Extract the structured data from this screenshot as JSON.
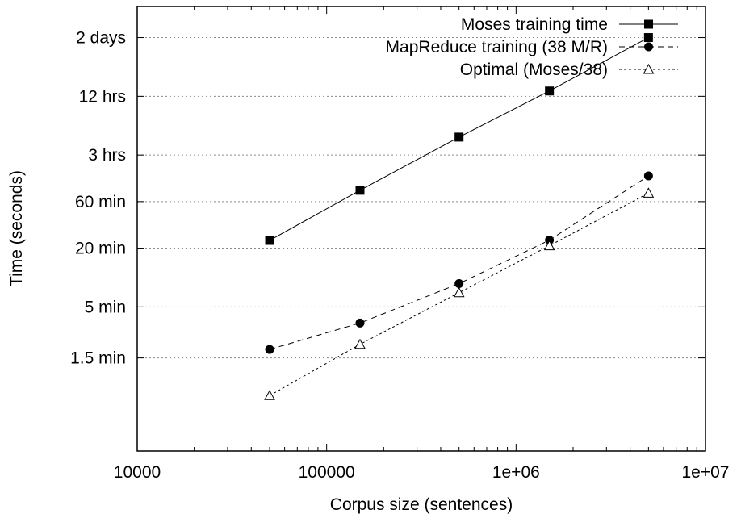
{
  "chart_data": {
    "type": "line",
    "xlabel": "Corpus size (sentences)",
    "ylabel": "Time (seconds)",
    "xscale": "log",
    "yscale": "log",
    "xlim": [
      10000,
      10000000
    ],
    "ylim": [
      10,
      360000
    ],
    "xticks": [
      {
        "value": 10000,
        "label": "10000"
      },
      {
        "value": 100000,
        "label": "100000"
      },
      {
        "value": 1000000,
        "label": "1e+06"
      },
      {
        "value": 10000000,
        "label": "1e+07"
      }
    ],
    "yticks": [
      {
        "value": 90,
        "label": "1.5 min"
      },
      {
        "value": 300,
        "label": "5 min"
      },
      {
        "value": 1200,
        "label": "20 min"
      },
      {
        "value": 3600,
        "label": "60 min"
      },
      {
        "value": 10800,
        "label": "3 hrs"
      },
      {
        "value": 43200,
        "label": "12 hrs"
      },
      {
        "value": 172800,
        "label": "2 days"
      }
    ],
    "grid": "horizontal dotted",
    "legend_position": "top-right",
    "series": [
      {
        "name": "Moses training time",
        "style": "solid",
        "marker": "filled-square",
        "color": "#000000",
        "x": [
          50000,
          150000,
          500000,
          1500000,
          5000000
        ],
        "y": [
          1440,
          4700,
          16500,
          49000,
          172800
        ]
      },
      {
        "name": "MapReduce training (38 M/R)",
        "style": "dashed",
        "marker": "filled-circle",
        "color": "#000000",
        "x": [
          50000,
          150000,
          500000,
          1500000,
          5000000
        ],
        "y": [
          110,
          205,
          520,
          1450,
          6600
        ]
      },
      {
        "name": "Optimal (Moses/38)",
        "style": "dotted",
        "marker": "open-triangle",
        "color": "#000000",
        "x": [
          50000,
          150000,
          500000,
          1500000,
          5000000
        ],
        "y": [
          37,
          124,
          420,
          1270,
          4400
        ]
      }
    ]
  }
}
